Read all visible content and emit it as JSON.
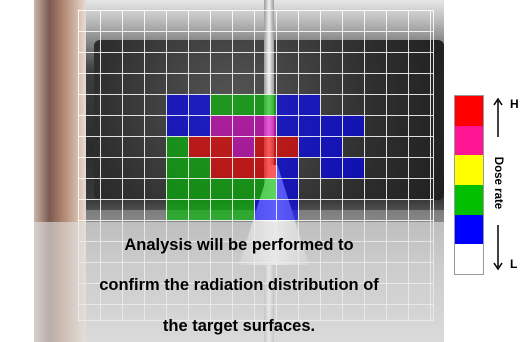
{
  "caption": {
    "line1": "Analysis will be performed to",
    "line2": "confirm the radiation distribution of",
    "line3": "the target surfaces."
  },
  "legend": {
    "high_label": "H",
    "low_label": "L",
    "axis_label": "Dose rate",
    "colors": [
      "#ff0000",
      "#ff1493",
      "#ffff00",
      "#00c000",
      "#0000ff",
      "#ffffff"
    ],
    "arrow_up_icon": "arrow-up-icon",
    "arrow_down_icon": "arrow-down-icon"
  },
  "heatmap": {
    "palette": {
      "H": "#ff0000",
      "M": "#e000c8",
      "Y": "#ffff00",
      "G": "#00c000",
      "B": "#0000ff"
    },
    "opacity": 0.62,
    "rows": [
      "...............",
      "...............",
      "...............",
      "...............",
      "....BBGGGBB....",
      "....BBMMMBBBB..",
      "....GHHMHHBB...",
      "....GGHHHB.BB..",
      "....GGGGGB.....",
      "....GGGGBB.....",
      "...............",
      "...............",
      "...............",
      "...............",
      "..............."
    ]
  }
}
